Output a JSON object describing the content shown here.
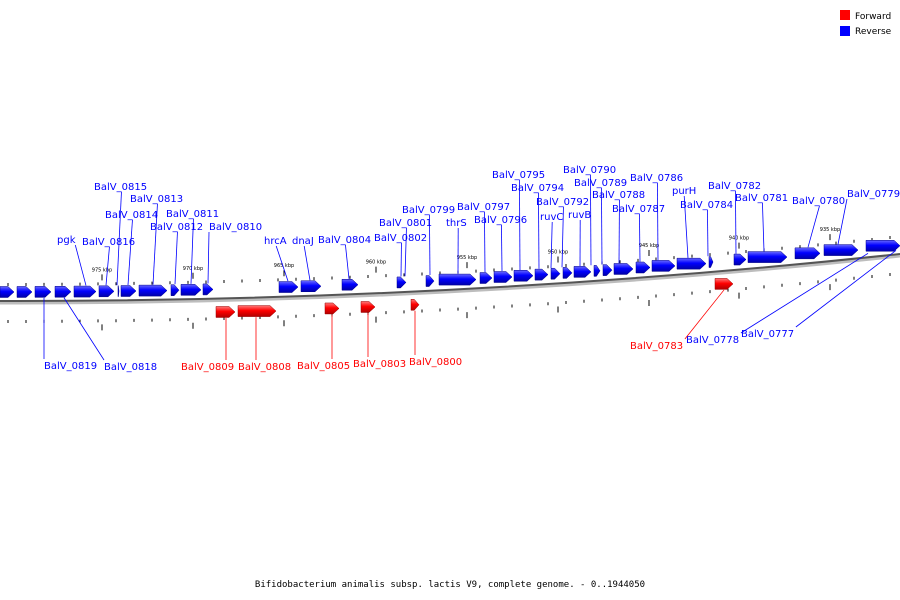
{
  "legend": {
    "forward_label": "Forward",
    "reverse_label": "Reverse",
    "forward_color": "#ff0000",
    "reverse_color": "#0000ff"
  },
  "caption": "Bifidobacterium animalis subsp. lactis V9, complete genome. - 0..1944050",
  "scale_labels": [
    "975 kbp",
    "970 kbp",
    "965 kbp",
    "960 kbp",
    "955 kbp",
    "950 kbp",
    "945 kbp",
    "940 kbp",
    "935 kbp"
  ],
  "reverse_genes": [
    "BalV_0819",
    "BalV_0818",
    "pgk",
    "BalV_0816",
    "BalV_0815",
    "BalV_0814",
    "BalV_0813",
    "BalV_0812",
    "BalV_0811",
    "BalV_0810",
    "hrcA",
    "dnaJ",
    "BalV_0804",
    "BalV_0802",
    "BalV_0801",
    "BalV_0799",
    "thrS",
    "BalV_0797",
    "BalV_0796",
    "BalV_0795",
    "BalV_0794",
    "BalV_0792",
    "ruvC",
    "ruvB",
    "BalV_0790",
    "BalV_0789",
    "BalV_0788",
    "BalV_0787",
    "BalV_0786",
    "purH",
    "BalV_0784",
    "BalV_0782",
    "BalV_0781",
    "BalV_0780",
    "BalV_0779",
    "BalV_0778",
    "BalV_0777"
  ],
  "forward_genes": [
    "BalV_0809",
    "BalV_0808",
    "BalV_0805",
    "BalV_0803",
    "BalV_0800",
    "BalV_0783"
  ]
}
